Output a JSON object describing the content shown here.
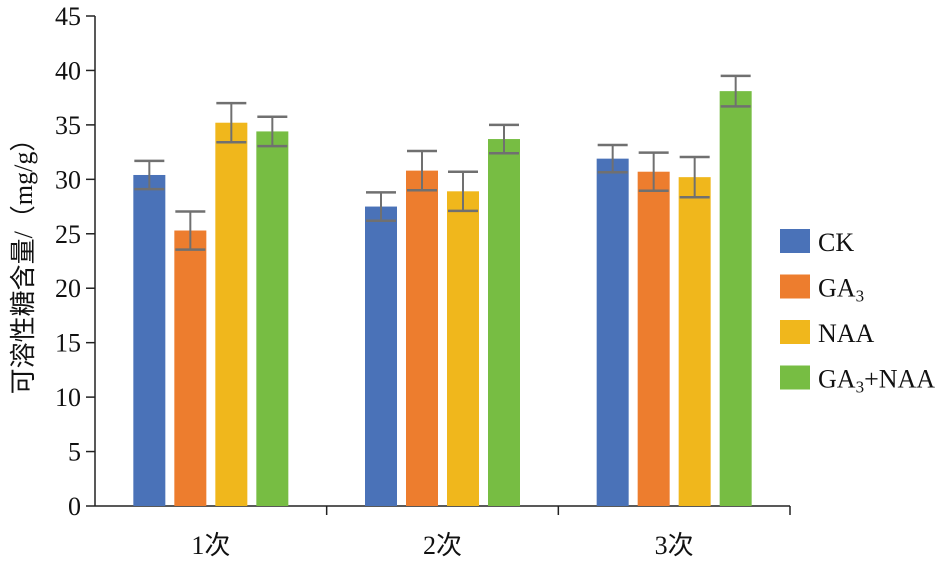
{
  "chart_data": {
    "type": "bar",
    "title": "",
    "xlabel": "",
    "ylabel": "可溶性糖含量/（mg/g）",
    "ylim": [
      0,
      45
    ],
    "yticks": [
      0,
      5,
      10,
      15,
      20,
      25,
      30,
      35,
      40,
      45
    ],
    "categories": [
      "1次",
      "2次",
      "3次"
    ],
    "legend_position": "right",
    "series": [
      {
        "name": "CK",
        "legend_main": "CK",
        "legend_sub": "",
        "legend_tail": "",
        "color": "#4a72b8",
        "values": [
          30.4,
          27.5,
          31.9
        ],
        "errors": [
          1.3,
          1.3,
          1.25
        ]
      },
      {
        "name": "GA3",
        "legend_main": "GA",
        "legend_sub": "3",
        "legend_tail": "",
        "color": "#ed7d2e",
        "values": [
          25.3,
          30.8,
          30.7
        ],
        "errors": [
          1.75,
          1.8,
          1.75
        ]
      },
      {
        "name": "NAA",
        "legend_main": "NAA",
        "legend_sub": "",
        "legend_tail": "",
        "color": "#f0b71c",
        "values": [
          35.2,
          28.9,
          30.2
        ],
        "errors": [
          1.8,
          1.8,
          1.85
        ]
      },
      {
        "name": "GA3+NAA",
        "legend_main": "GA",
        "legend_sub": "3",
        "legend_tail": "+NAA",
        "color": "#77bd43",
        "values": [
          34.4,
          33.7,
          38.1
        ],
        "errors": [
          1.35,
          1.3,
          1.4
        ]
      }
    ]
  }
}
